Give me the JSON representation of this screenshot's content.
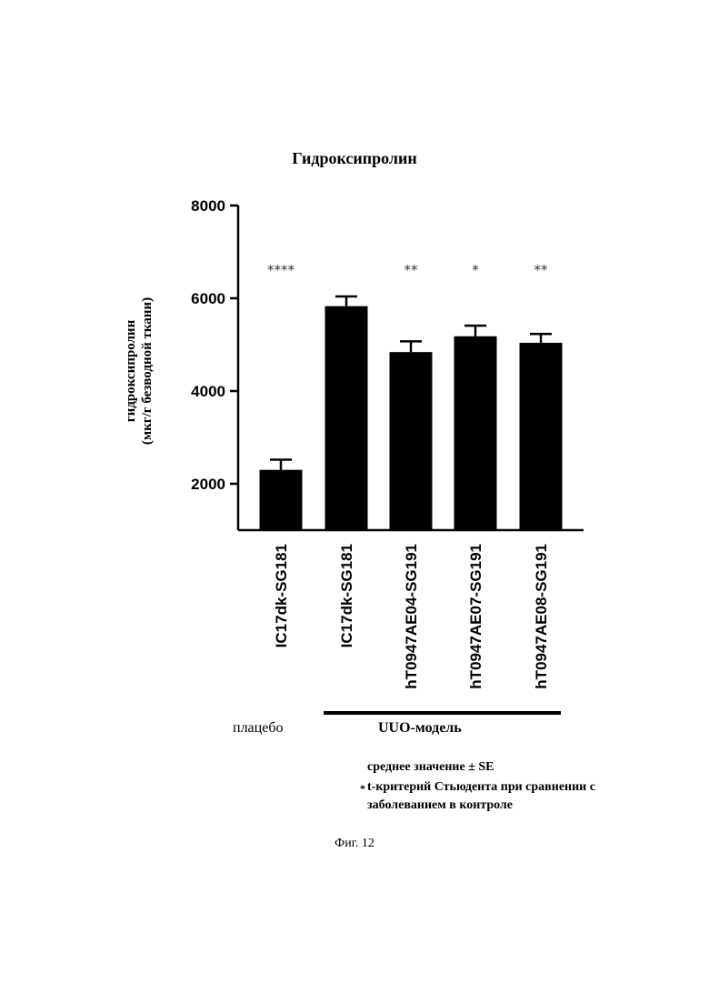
{
  "chart_data": {
    "type": "bar",
    "title": "Гидроксипролин",
    "ylabel_lines": [
      "гидроксипролин",
      "(мкг/г безводной ткани)"
    ],
    "categories": [
      "IC17dk-SG181",
      "IC17dk-SG181",
      "hT0947AE04-SG191",
      "hT0947AE07-SG191",
      "hT0947AE08-SG191"
    ],
    "values": [
      2300,
      5830,
      4840,
      5180,
      5040
    ],
    "errors": [
      220,
      210,
      230,
      230,
      190
    ],
    "significance": [
      "****",
      "",
      "**",
      "*",
      "**"
    ],
    "yticks": [
      2000,
      4000,
      6000,
      8000
    ],
    "ylim": [
      1000,
      8000
    ],
    "bar_color": "#000000"
  },
  "group_labels": {
    "placebo": "плацебо",
    "model": "UUO-модель"
  },
  "legend": {
    "marker": "*",
    "line1": "среднее значение ± SE",
    "line2": "t-критерий Стьюдента при сравнении с",
    "line3": "заболеванием в контроле"
  },
  "caption": "Фиг. 12"
}
